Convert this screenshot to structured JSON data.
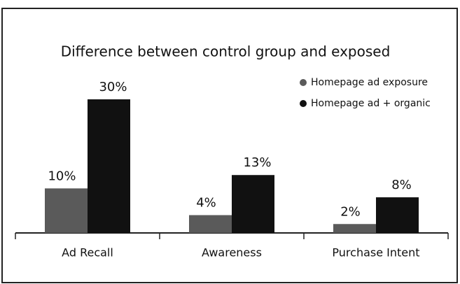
{
  "chart_data": {
    "type": "bar",
    "title": "Difference between control group and exposed",
    "categories": [
      "Ad Recall",
      "Awareness",
      "Purchase Intent"
    ],
    "series": [
      {
        "name": "Homepage ad exposure",
        "color": "#5a5a5a",
        "values": [
          10,
          4,
          2
        ],
        "value_labels": [
          "10%",
          "4%",
          "2%"
        ]
      },
      {
        "name": "Homepage ad + organic",
        "color": "#111111",
        "values": [
          30,
          13,
          8
        ],
        "value_labels": [
          "30%",
          "13%",
          "8%"
        ]
      }
    ],
    "legend": "upper right"
  }
}
